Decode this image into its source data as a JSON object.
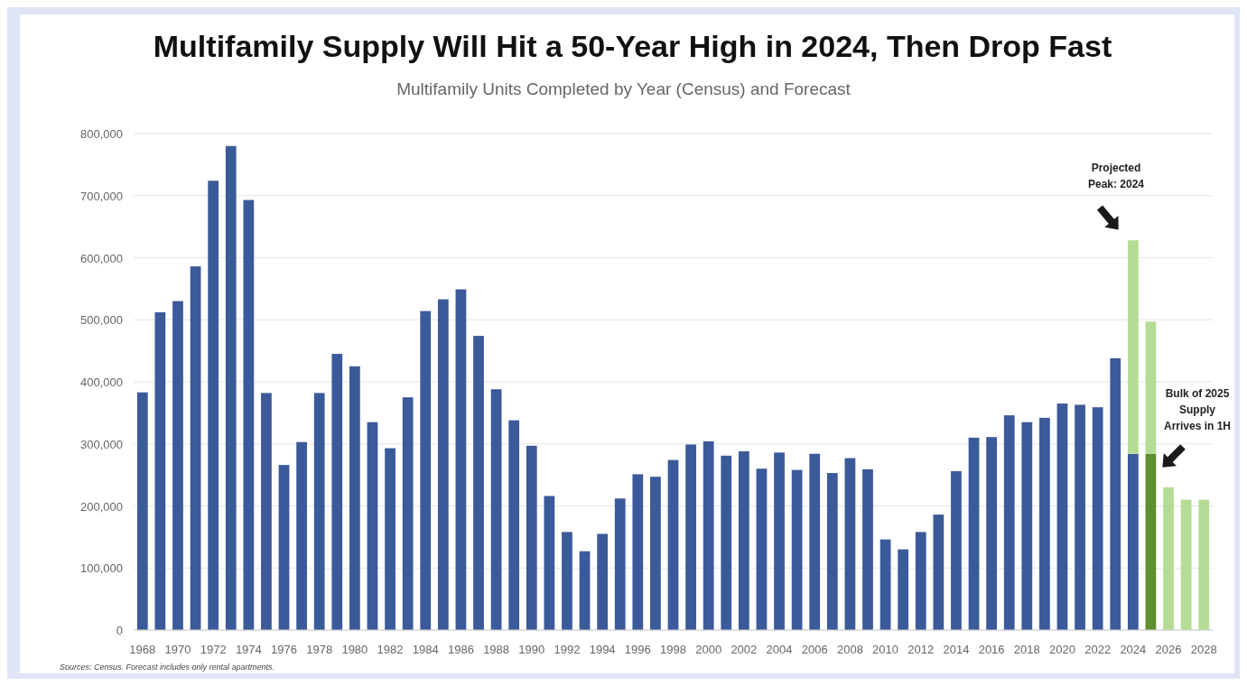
{
  "chart_data": {
    "type": "bar",
    "stacked": true,
    "title": "Multifamily Supply Will Hit a 50-Year High in 2024, Then Drop Fast",
    "subtitle": "Multifamily Units Completed by Year (Census) and Forecast",
    "categories": [
      "1968",
      null,
      "1970",
      null,
      "1972",
      null,
      "1974",
      null,
      "1976",
      null,
      "1978",
      null,
      "1980",
      null,
      "1982",
      null,
      "1984",
      null,
      "1986",
      null,
      "1988",
      null,
      "1990",
      null,
      "1992",
      null,
      "1994",
      null,
      "1996",
      null,
      "1998",
      null,
      "2000",
      null,
      "2002",
      null,
      "2004",
      null,
      "2006",
      null,
      "2008",
      null,
      "2010",
      null,
      "2012",
      null,
      "2014",
      null,
      "2016",
      null,
      "2018",
      null,
      "2020",
      null,
      "2022",
      null,
      "2024",
      null,
      "2026",
      null,
      "2028"
    ],
    "series": [
      {
        "color": "#3b5a9a",
        "values": [
          383000,
          512000,
          530000,
          586000,
          724000,
          780000,
          693000,
          382000,
          266000,
          303000,
          382000,
          445000,
          425000,
          335000,
          293000,
          375000,
          514000,
          533000,
          549000,
          474000,
          388000,
          338000,
          297000,
          216000,
          158000,
          127000,
          155000,
          212000,
          251000,
          247000,
          274000,
          299000,
          304000,
          281000,
          288000,
          260000,
          286000,
          258000,
          284000,
          253000,
          277000,
          259000,
          146000,
          130000,
          158000,
          186000,
          256000,
          310000,
          311000,
          346000,
          335000,
          342000,
          365000,
          363000,
          359000,
          438000,
          284000,
          null,
          null,
          null,
          null
        ]
      },
      {
        "color": "#5f8f2f",
        "values": [
          null,
          null,
          null,
          null,
          null,
          null,
          null,
          null,
          null,
          null,
          null,
          null,
          null,
          null,
          null,
          null,
          null,
          null,
          null,
          null,
          null,
          null,
          null,
          null,
          null,
          null,
          null,
          null,
          null,
          null,
          null,
          null,
          null,
          null,
          null,
          null,
          null,
          null,
          null,
          null,
          null,
          null,
          null,
          null,
          null,
          null,
          null,
          null,
          null,
          null,
          null,
          null,
          null,
          null,
          null,
          null,
          null,
          284000,
          null,
          null,
          null
        ]
      },
      {
        "color": "#b5dc94",
        "values": [
          null,
          null,
          null,
          null,
          null,
          null,
          null,
          null,
          null,
          null,
          null,
          null,
          null,
          null,
          null,
          null,
          null,
          null,
          null,
          null,
          null,
          null,
          null,
          null,
          null,
          null,
          null,
          null,
          null,
          null,
          null,
          null,
          null,
          null,
          null,
          null,
          null,
          null,
          null,
          null,
          null,
          null,
          null,
          null,
          null,
          null,
          null,
          null,
          null,
          null,
          null,
          null,
          null,
          null,
          null,
          null,
          344000,
          213000,
          230000,
          210000,
          210000
        ]
      }
    ],
    "ylim": [
      0,
      800000
    ],
    "yticks": [
      {
        "value": 0,
        "label": "0"
      },
      {
        "value": 100000,
        "label": "100,000"
      },
      {
        "value": 200000,
        "label": "200,000"
      },
      {
        "value": 300000,
        "label": "300,000"
      },
      {
        "value": 400000,
        "label": "400,000"
      },
      {
        "value": 500000,
        "label": "500,000"
      },
      {
        "value": 600000,
        "label": "600,000"
      },
      {
        "value": 700000,
        "label": "700,000"
      },
      {
        "value": 800000,
        "label": "800,000"
      }
    ],
    "grid": "y",
    "annotations": [
      "Projected\nPeak: 2024",
      "Bulk of 2025\nSupply\nArrives in 1H",
      "Sources: Census. Forecast includes only rental apartments."
    ]
  }
}
